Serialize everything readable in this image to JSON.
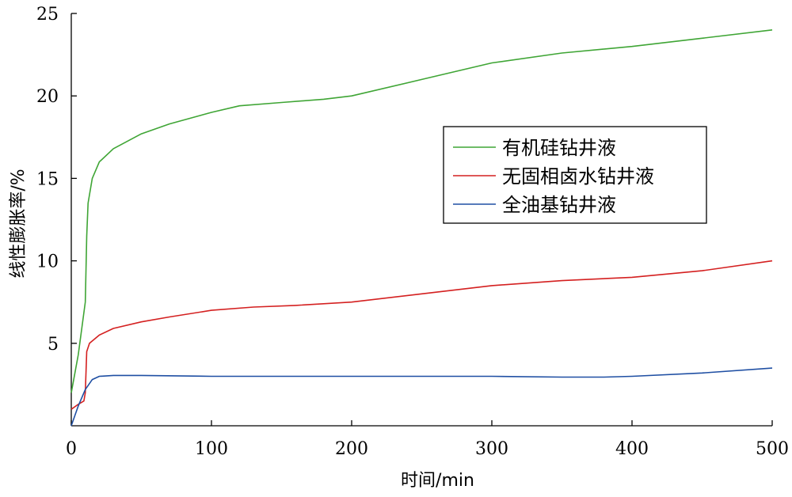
{
  "chart_data": {
    "type": "line",
    "title": "",
    "xlabel": "时间/min",
    "ylabel": "线性膨胀率/%",
    "xlim": [
      0,
      500
    ],
    "ylim": [
      0,
      25
    ],
    "xticks": [
      0,
      100,
      200,
      300,
      400,
      500
    ],
    "yticks": [
      5,
      10,
      15,
      20,
      25
    ],
    "grid": false,
    "legend_position": "upper-right",
    "series": [
      {
        "name": "有机硅钻井液",
        "color": "#3fa535",
        "points": [
          [
            0,
            2.0
          ],
          [
            5,
            4.3
          ],
          [
            10,
            7.5
          ],
          [
            11,
            11.5
          ],
          [
            12,
            13.5
          ],
          [
            15,
            15.0
          ],
          [
            20,
            16.0
          ],
          [
            30,
            16.8
          ],
          [
            50,
            17.7
          ],
          [
            70,
            18.3
          ],
          [
            100,
            19.0
          ],
          [
            120,
            19.4
          ],
          [
            150,
            19.6
          ],
          [
            180,
            19.8
          ],
          [
            200,
            20.0
          ],
          [
            250,
            21.0
          ],
          [
            300,
            22.0
          ],
          [
            350,
            22.6
          ],
          [
            400,
            23.0
          ],
          [
            450,
            23.5
          ],
          [
            500,
            24.0
          ]
        ]
      },
      {
        "name": "无固相卤水钻井液",
        "color": "#d42020",
        "points": [
          [
            0,
            1.0
          ],
          [
            5,
            1.3
          ],
          [
            9,
            1.5
          ],
          [
            10,
            2.0
          ],
          [
            11,
            4.5
          ],
          [
            13,
            5.0
          ],
          [
            20,
            5.5
          ],
          [
            30,
            5.9
          ],
          [
            50,
            6.3
          ],
          [
            70,
            6.6
          ],
          [
            100,
            7.0
          ],
          [
            130,
            7.2
          ],
          [
            160,
            7.3
          ],
          [
            200,
            7.5
          ],
          [
            250,
            8.0
          ],
          [
            300,
            8.5
          ],
          [
            350,
            8.8
          ],
          [
            400,
            9.0
          ],
          [
            450,
            9.4
          ],
          [
            500,
            10.0
          ]
        ]
      },
      {
        "name": "全油基钻井液",
        "color": "#1f4fa3",
        "points": [
          [
            0,
            0.0
          ],
          [
            5,
            1.2
          ],
          [
            10,
            2.2
          ],
          [
            15,
            2.8
          ],
          [
            20,
            3.0
          ],
          [
            30,
            3.05
          ],
          [
            50,
            3.05
          ],
          [
            100,
            3.0
          ],
          [
            150,
            3.0
          ],
          [
            200,
            3.0
          ],
          [
            250,
            3.0
          ],
          [
            300,
            3.0
          ],
          [
            350,
            2.95
          ],
          [
            380,
            2.95
          ],
          [
            400,
            3.0
          ],
          [
            450,
            3.2
          ],
          [
            500,
            3.5
          ]
        ]
      }
    ]
  }
}
